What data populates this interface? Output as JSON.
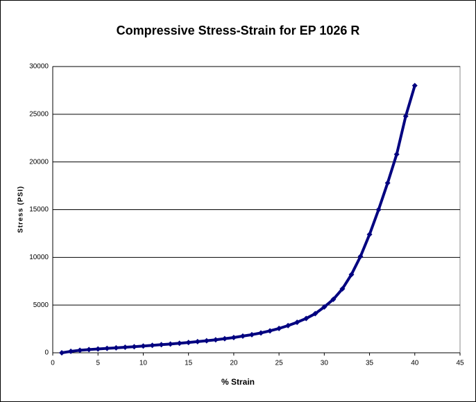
{
  "chart_data": {
    "type": "scatter-line",
    "title": "Compressive Stress-Strain for EP 1026 R",
    "x_label": "% Strain",
    "y_label": "Stress (PSI)",
    "x": [
      1,
      2,
      3,
      4,
      5,
      6,
      7,
      8,
      9,
      10,
      11,
      12,
      13,
      14,
      15,
      16,
      17,
      18,
      19,
      20,
      21,
      22,
      23,
      24,
      25,
      26,
      27,
      28,
      29,
      30,
      31,
      32,
      33,
      34,
      35,
      36,
      37,
      38,
      39,
      40
    ],
    "values": [
      0,
      150,
      260,
      340,
      400,
      460,
      520,
      580,
      640,
      710,
      780,
      850,
      920,
      1000,
      1080,
      1170,
      1260,
      1360,
      1480,
      1600,
      1750,
      1900,
      2080,
      2300,
      2550,
      2850,
      3200,
      3600,
      4100,
      4800,
      5600,
      6700,
      8200,
      10100,
      12400,
      15000,
      17800,
      20800,
      24800,
      28000
    ],
    "color": "#000080",
    "xlim": [
      0,
      45
    ],
    "xticks": [
      0,
      5,
      10,
      15,
      20,
      25,
      30,
      35,
      40,
      45
    ],
    "ylim": [
      0,
      30000
    ],
    "yticks": [
      0,
      5000,
      10000,
      15000,
      20000,
      25000,
      30000
    ],
    "grid": true
  }
}
